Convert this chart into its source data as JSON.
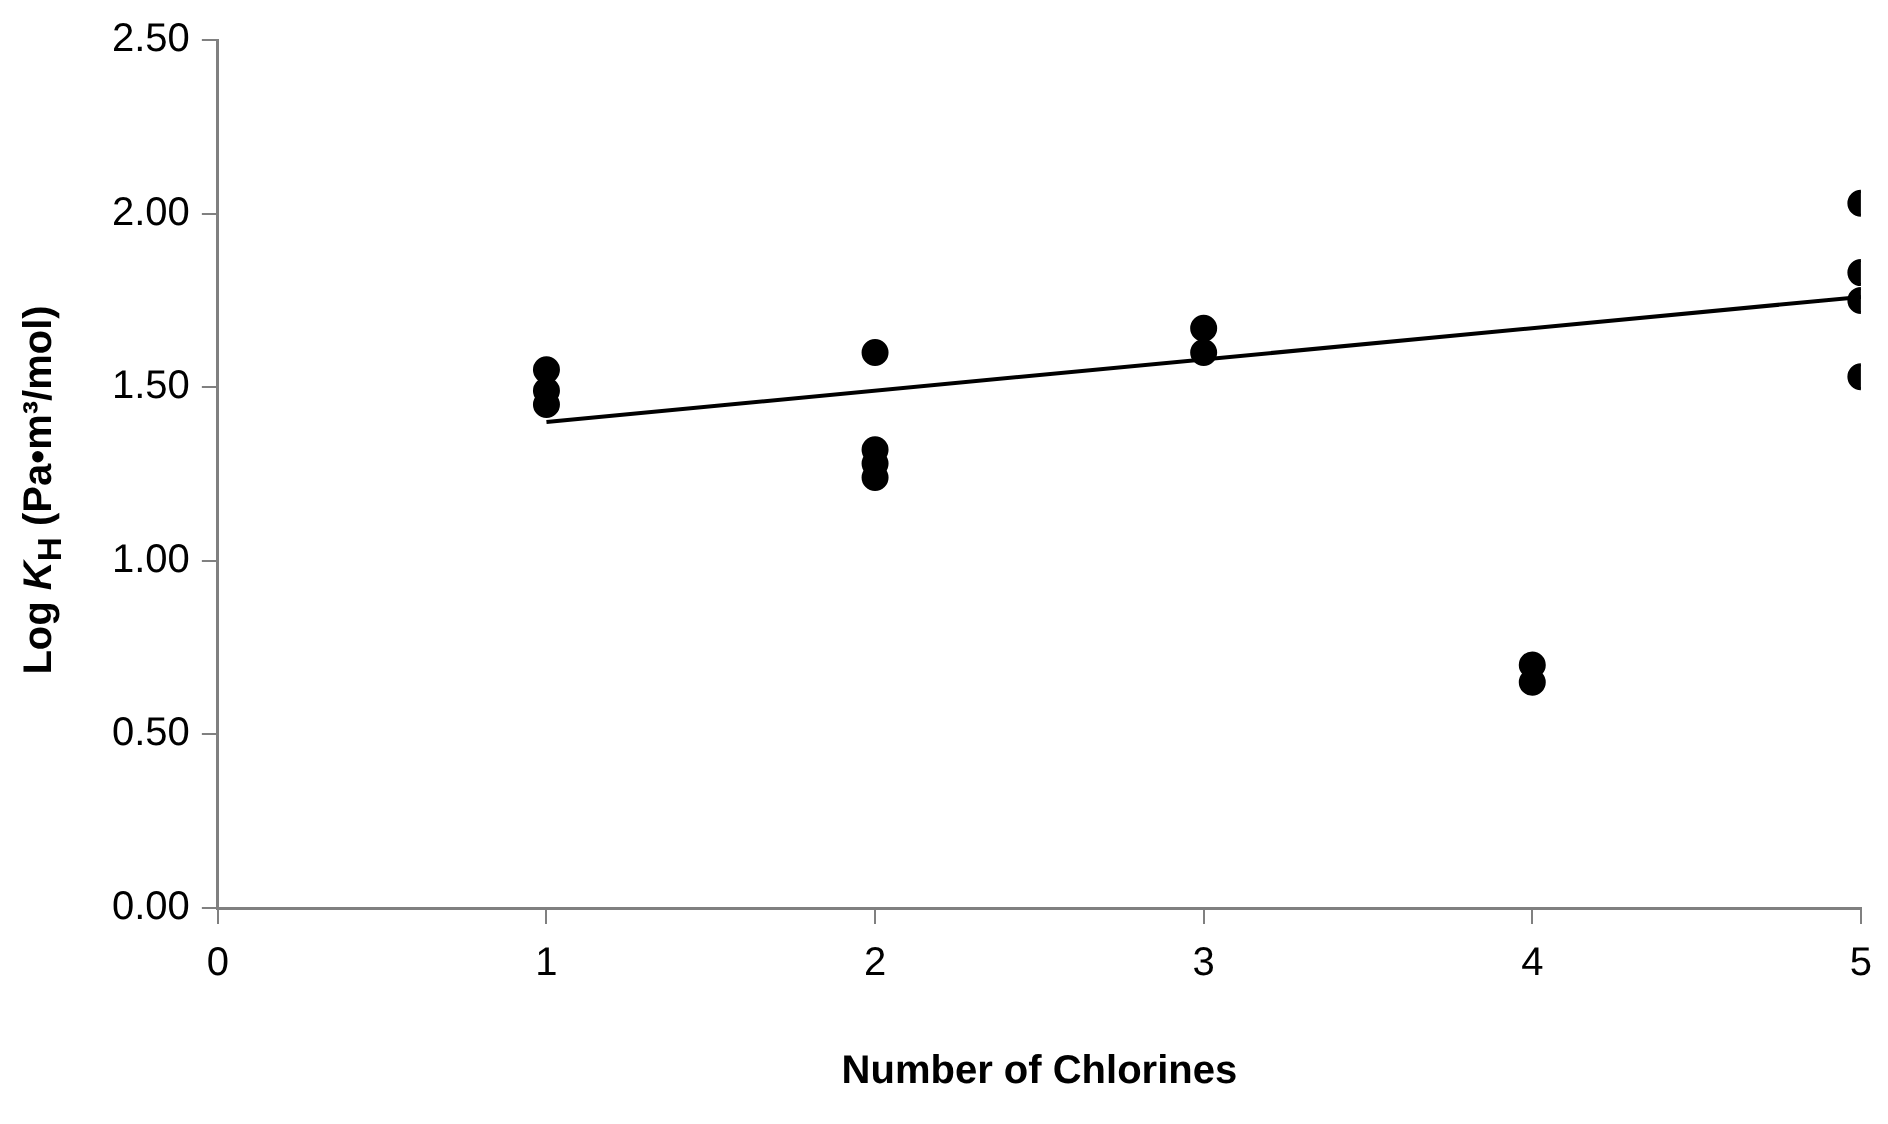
{
  "chart_data": {
    "type": "scatter",
    "xlabel": "Number of Chlorines",
    "ylabel": "Log K$_{H}$ (Pa•m³/mol)",
    "xlim": [
      0,
      5
    ],
    "xticks": [
      0,
      1,
      2,
      3,
      4,
      5
    ],
    "ylim": [
      0,
      2.5
    ],
    "yticks": [
      {
        "value": 0,
        "label": "0.00"
      },
      {
        "value": 0.5,
        "label": "0.50"
      },
      {
        "value": 1,
        "label": "1.00"
      },
      {
        "value": 1.5,
        "label": "1.50"
      },
      {
        "value": 2,
        "label": "2.00"
      },
      {
        "value": 2.5,
        "label": "2.50"
      }
    ],
    "grid": false,
    "legend": false,
    "marker": "circle",
    "series": [
      {
        "color": "#000000",
        "x": [
          1,
          1,
          1,
          2,
          2,
          2,
          2,
          3,
          3,
          5,
          5,
          5,
          5
        ],
        "values": [
          1.55,
          1.49,
          1.45,
          1.6,
          1.32,
          1.28,
          1.24,
          1.67,
          1.6,
          2.03,
          1.83,
          1.75,
          1.53
        ]
      },
      {
        "color": "#000000",
        "x": [
          4,
          4
        ],
        "values": [
          0.7,
          0.65
        ]
      },
      {
        "type": "line",
        "color": "#000000",
        "marker": "none",
        "x": [
          1,
          5
        ],
        "values": [
          1.4,
          1.76
        ]
      }
    ]
  }
}
